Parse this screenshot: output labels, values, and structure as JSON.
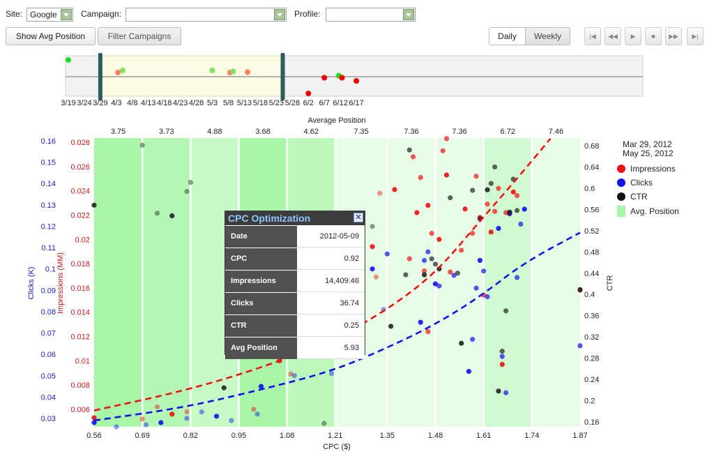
{
  "filters": {
    "site_label": "Site:",
    "site_value": "Google",
    "campaign_label": "Campaign:",
    "campaign_value": "",
    "profile_label": "Profile:",
    "profile_value": ""
  },
  "toolbar": {
    "show_avg_position": "Show Avg Position",
    "filter_campaigns": "Filter Campaigns",
    "daily": "Daily",
    "weekly": "Weekly",
    "active_view": "Daily"
  },
  "playback": {
    "first_icon": "skip-first-icon",
    "prev_icon": "rewind-icon",
    "play_icon": "play-icon",
    "stop_icon": "stop-icon",
    "next_icon": "fast-forward-icon",
    "last_icon": "skip-last-icon"
  },
  "timeline": {
    "ticks": [
      "3/19",
      "3/24",
      "3/29",
      "4/3",
      "4/8",
      "4/13",
      "4/18",
      "4/23",
      "4/28",
      "5/3",
      "5/8",
      "5/13",
      "5/18",
      "5/23",
      "5/28",
      "6/2",
      "6/7",
      "6/12",
      "6/17"
    ],
    "selected_range": [
      "3/29",
      "5/25"
    ],
    "markers": [
      {
        "day": 0,
        "level": 0.8,
        "color": "#22dd22"
      },
      {
        "day": 15.5,
        "level": 0.2,
        "color": "#ff8060"
      },
      {
        "day": 17,
        "level": 0.3,
        "color": "#80e060"
      },
      {
        "day": 45,
        "level": 0.3,
        "color": "#80e060"
      },
      {
        "day": 50.5,
        "level": 0.2,
        "color": "#ff8060"
      },
      {
        "day": 51.5,
        "level": 0.25,
        "color": "#80e060"
      },
      {
        "day": 56,
        "level": 0.22,
        "color": "#ff8060"
      },
      {
        "day": 75,
        "level": -0.8,
        "color": "#ee0000"
      },
      {
        "day": 80,
        "level": -0.05,
        "color": "#ee0000"
      },
      {
        "day": 84.5,
        "level": 0.05,
        "color": "#22dd22"
      },
      {
        "day": 85.5,
        "level": -0.05,
        "color": "#ee0000"
      },
      {
        "day": 90,
        "level": -0.2,
        "color": "#ee0000"
      }
    ]
  },
  "legend": {
    "date_from": "Mar 29, 2012",
    "date_to": "May 25, 2012",
    "items": [
      {
        "label": "Impressions",
        "color": "#ee1111"
      },
      {
        "label": "Clicks",
        "color": "#1111ee"
      },
      {
        "label": "CTR",
        "color": "#111111"
      },
      {
        "label": "Avg. Position",
        "color": "#a8f5a8"
      }
    ]
  },
  "tooltip": {
    "title": "CPC Optimization",
    "close_icon": "close-icon",
    "rows": [
      {
        "k": "Date",
        "v": "2012-05-09"
      },
      {
        "k": "CPC",
        "v": "0.92"
      },
      {
        "k": "Impressions",
        "v": "14,409.46"
      },
      {
        "k": "Clicks",
        "v": "36.74"
      },
      {
        "k": "CTR",
        "v": "0.25"
      },
      {
        "k": "Avg Position",
        "v": "5.93"
      }
    ]
  },
  "chart_data": {
    "type": "scatter",
    "xlabel": "CPC ($)",
    "x_ticks": [
      "0.56",
      "0.69",
      "0.82",
      "0.95",
      "1.08",
      "1.21",
      "1.35",
      "1.48",
      "1.61",
      "1.74",
      "1.87"
    ],
    "xlim": [
      0.56,
      1.87
    ],
    "top_axis_label": "Average Position",
    "avg_position_bands": [
      {
        "x0": 0.56,
        "x1": 0.69,
        "value": "3.75",
        "shade": "#a8f5a8"
      },
      {
        "x0": 0.69,
        "x1": 0.82,
        "value": "3.73",
        "shade": "#b4f7b4"
      },
      {
        "x0": 0.82,
        "x1": 0.95,
        "value": "4.88",
        "shade": "#c6f9c6"
      },
      {
        "x0": 0.95,
        "x1": 1.08,
        "value": "3.68",
        "shade": "#a8f5a8"
      },
      {
        "x0": 1.08,
        "x1": 1.21,
        "value": "4.62",
        "shade": "#bcf8bc"
      },
      {
        "x0": 1.21,
        "x1": 1.35,
        "value": "7.35",
        "shade": "#e6fce6"
      },
      {
        "x0": 1.35,
        "x1": 1.48,
        "value": "7.36",
        "shade": "#e6fce6"
      },
      {
        "x0": 1.48,
        "x1": 1.61,
        "value": "7.36",
        "shade": "#e6fce6"
      },
      {
        "x0": 1.61,
        "x1": 1.74,
        "value": "6.72",
        "shade": "#d2fad2"
      },
      {
        "x0": 1.74,
        "x1": 1.87,
        "value": "7.46",
        "shade": "#e6fce6"
      }
    ],
    "axes": {
      "clicks": {
        "label": "Clicks (K)",
        "ticks": [
          "0.16",
          "0.15",
          "0.14",
          "0.13",
          "0.12",
          "0.11",
          "0.1",
          "0.09",
          "0.08",
          "0.07",
          "0.06",
          "0.05",
          "0.04",
          "0.03"
        ],
        "color": "#1a1acc"
      },
      "impressions": {
        "label": "Impressions (MM)",
        "ticks": [
          "0.028",
          "0.026",
          "0.024",
          "0.022",
          "0.02",
          "0.018",
          "0.016",
          "0.014",
          "0.012",
          "0.01",
          "0.008",
          "0.006"
        ],
        "color": "#cc1a1a"
      },
      "ctr": {
        "label": "CTR",
        "ticks": [
          "0.68",
          "0.64",
          "0.6",
          "0.56",
          "0.52",
          "0.48",
          "0.44",
          "0.4",
          "0.36",
          "0.32",
          "0.28",
          "0.24",
          "0.2",
          "0.16"
        ],
        "color": "#222222"
      }
    },
    "trend_lines": [
      {
        "name": "Impressions",
        "color": "#ee1111",
        "points": [
          [
            0.56,
            0.0059
          ],
          [
            0.8,
            0.0075
          ],
          [
            1.0,
            0.0093
          ],
          [
            1.2,
            0.0116
          ],
          [
            1.35,
            0.0142
          ],
          [
            1.48,
            0.0172
          ],
          [
            1.6,
            0.0215
          ],
          [
            1.7,
            0.025
          ],
          [
            1.79,
            0.0283
          ]
        ]
      },
      {
        "name": "Clicks",
        "color": "#1111ee",
        "points": [
          [
            0.56,
            0.029
          ],
          [
            0.8,
            0.035
          ],
          [
            1.0,
            0.043
          ],
          [
            1.2,
            0.052
          ],
          [
            1.35,
            0.063
          ],
          [
            1.48,
            0.074
          ],
          [
            1.6,
            0.087
          ],
          [
            1.72,
            0.103
          ],
          [
            1.87,
            0.117
          ]
        ]
      }
    ],
    "series": [
      {
        "name": "Impressions",
        "color": "#ee1111",
        "points": [
          [
            0.56,
            0.0053
          ],
          [
            0.69,
            0.0052
          ],
          [
            0.73,
            0.0062
          ],
          [
            0.77,
            0.0056
          ],
          [
            0.81,
            0.0058
          ],
          [
            0.99,
            0.006
          ],
          [
            1.06,
            0.01
          ],
          [
            1.09,
            0.0089
          ],
          [
            1.18,
            0.0135
          ],
          [
            1.31,
            0.0194
          ],
          [
            1.32,
            0.0169
          ],
          [
            1.33,
            0.0238
          ],
          [
            1.37,
            0.0241
          ],
          [
            1.41,
            0.0184
          ],
          [
            1.42,
            0.0268
          ],
          [
            1.43,
            0.0222
          ],
          [
            1.44,
            0.0251
          ],
          [
            1.45,
            0.0174
          ],
          [
            1.46,
            0.0228
          ],
          [
            1.46,
            0.0124
          ],
          [
            1.47,
            0.0205
          ],
          [
            1.49,
            0.02
          ],
          [
            1.5,
            0.0273
          ],
          [
            1.51,
            0.0283
          ],
          [
            1.51,
            0.0253
          ],
          [
            1.52,
            0.0173
          ],
          [
            1.55,
            0.0191
          ],
          [
            1.56,
            0.0225
          ],
          [
            1.58,
            0.0205
          ],
          [
            1.59,
            0.0252
          ],
          [
            1.6,
            0.0218
          ],
          [
            1.61,
            0.0154
          ],
          [
            1.62,
            0.0229
          ],
          [
            1.63,
            0.0206
          ],
          [
            1.64,
            0.0223
          ],
          [
            1.65,
            0.0242
          ],
          [
            1.66,
            0.0097
          ],
          [
            1.67,
            0.0222
          ],
          [
            1.68,
            0.0221
          ],
          [
            1.69,
            0.0239
          ],
          [
            1.7,
            0.0236
          ],
          [
            1.87,
            0.0158
          ]
        ]
      },
      {
        "name": "Clicks",
        "color": "#1111ee",
        "points": [
          [
            0.56,
            0.028
          ],
          [
            0.62,
            0.026
          ],
          [
            0.7,
            0.027
          ],
          [
            0.74,
            0.028
          ],
          [
            0.81,
            0.03
          ],
          [
            0.85,
            0.033
          ],
          [
            0.89,
            0.031
          ],
          [
            0.93,
            0.029
          ],
          [
            1.0,
            0.032
          ],
          [
            1.01,
            0.045
          ],
          [
            1.1,
            0.05
          ],
          [
            1.2,
            0.051
          ],
          [
            1.31,
            0.1
          ],
          [
            1.34,
            0.081
          ],
          [
            1.35,
            0.107
          ],
          [
            1.44,
            0.075
          ],
          [
            1.45,
            0.104
          ],
          [
            1.46,
            0.108
          ],
          [
            1.48,
            0.093
          ],
          [
            1.49,
            0.092
          ],
          [
            1.53,
            0.097
          ],
          [
            1.57,
            0.052
          ],
          [
            1.58,
            0.067
          ],
          [
            1.59,
            0.091
          ],
          [
            1.6,
            0.104
          ],
          [
            1.61,
            0.099
          ],
          [
            1.62,
            0.087
          ],
          [
            1.65,
            0.119
          ],
          [
            1.66,
            0.059
          ],
          [
            1.67,
            0.042
          ],
          [
            1.68,
            0.126
          ],
          [
            1.7,
            0.096
          ],
          [
            1.71,
            0.121
          ],
          [
            1.72,
            0.128
          ],
          [
            1.87,
            0.064
          ]
        ]
      },
      {
        "name": "CTR",
        "color": "#222222",
        "points": [
          [
            0.56,
            0.568
          ],
          [
            0.69,
            0.681
          ],
          [
            0.73,
            0.553
          ],
          [
            0.77,
            0.548
          ],
          [
            0.81,
            0.594
          ],
          [
            0.82,
            0.611
          ],
          [
            0.91,
            0.224
          ],
          [
            1.18,
            0.157
          ],
          [
            1.31,
            0.528
          ],
          [
            1.36,
            0.34
          ],
          [
            1.4,
            0.437
          ],
          [
            1.41,
            0.672
          ],
          [
            1.45,
            0.437
          ],
          [
            1.47,
            0.467
          ],
          [
            1.48,
            0.457
          ],
          [
            1.49,
            0.448
          ],
          [
            1.52,
            0.582
          ],
          [
            1.54,
            0.44
          ],
          [
            1.55,
            0.308
          ],
          [
            1.58,
            0.596
          ],
          [
            1.6,
            0.542
          ],
          [
            1.62,
            0.597
          ],
          [
            1.63,
            0.609
          ],
          [
            1.64,
            0.64
          ],
          [
            1.65,
            0.218
          ],
          [
            1.66,
            0.293
          ],
          [
            1.67,
            0.369
          ],
          [
            1.68,
            0.555
          ],
          [
            1.69,
            0.617
          ],
          [
            1.7,
            0.558
          ],
          [
            1.87,
            0.409
          ]
        ]
      }
    ]
  }
}
